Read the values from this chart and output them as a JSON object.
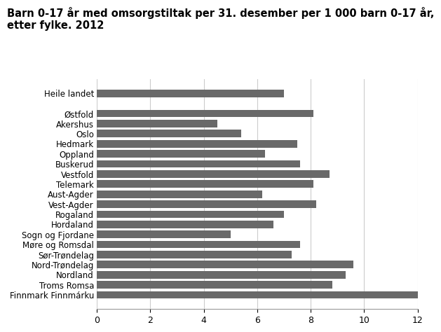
{
  "title_line1": "Barn 0-17 år med omsorgstiltak per 31. desember per 1 000 barn 0-17 år,",
  "title_line2": "etter fylke. 2012",
  "categories": [
    "Finnmark Finnmárku",
    "Troms Romsa",
    "Nordland",
    "Nord-Trøndelag",
    "Sør-Trøndelag",
    "Møre og Romsdal",
    "Sogn og Fjordane",
    "Hordaland",
    "Rogaland",
    "Vest-Agder",
    "Aust-Agder",
    "Telemark",
    "Vestfold",
    "Buskerud",
    "Oppland",
    "Hedmark",
    "Oslo",
    "Akershus",
    "Østfold",
    "",
    "Heile landet"
  ],
  "values": [
    12.0,
    8.8,
    9.3,
    9.6,
    7.3,
    7.6,
    5.0,
    6.6,
    7.0,
    8.2,
    6.2,
    8.1,
    8.7,
    7.6,
    6.3,
    7.5,
    5.4,
    4.5,
    8.1,
    0,
    7.0
  ],
  "bar_color": "#696969",
  "xlim": [
    0,
    12
  ],
  "xticks": [
    0,
    2,
    4,
    6,
    8,
    10,
    12
  ],
  "title_fontsize": 10.5,
  "label_fontsize": 8.5,
  "tick_fontsize": 9,
  "background_color": "#ffffff",
  "grid_color": "#cccccc"
}
